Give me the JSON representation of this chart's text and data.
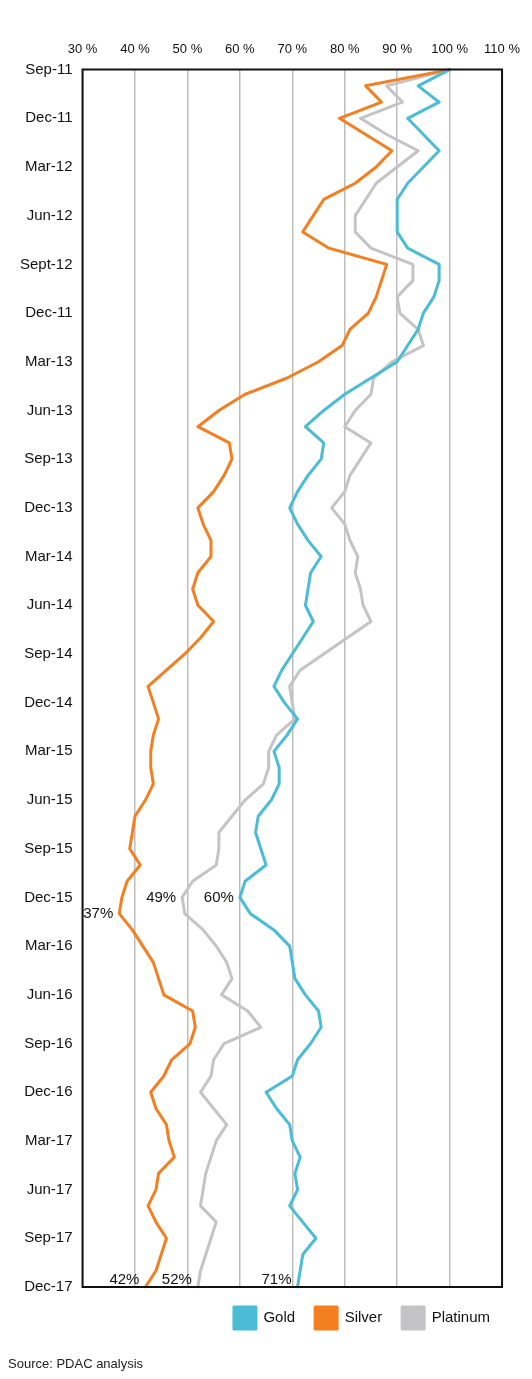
{
  "chart_data": {
    "type": "line",
    "categories": [
      "Sep-11",
      null,
      null,
      "Dec-11",
      null,
      null,
      "Mar-12",
      null,
      null,
      "Jun-12",
      null,
      null,
      "Sept-12",
      null,
      null,
      "Dec-11",
      null,
      null,
      "Mar-13",
      null,
      null,
      "Jun-13",
      null,
      null,
      "Sep-13",
      null,
      null,
      "Dec-13",
      null,
      null,
      "Mar-14",
      null,
      null,
      "Jun-14",
      null,
      null,
      "Sep-14",
      null,
      null,
      "Dec-14",
      null,
      null,
      "Mar-15",
      null,
      null,
      "Jun-15",
      null,
      null,
      "Sep-15",
      null,
      null,
      "Dec-15",
      null,
      null,
      "Mar-16",
      null,
      null,
      "Jun-16",
      null,
      null,
      "Sep-16",
      null,
      null,
      "Dec-16",
      null,
      null,
      "Mar-17",
      null,
      null,
      "Jun-17",
      null,
      null,
      "Sep-17",
      null,
      null,
      "Dec-17"
    ],
    "series": [
      {
        "name": "Gold",
        "color": "#4bbcd6",
        "values": [
          100,
          94,
          98,
          92,
          95,
          98,
          95,
          92,
          90,
          90,
          90,
          92,
          98,
          98,
          97,
          95,
          94,
          92,
          90,
          85,
          80,
          76,
          72.5,
          76,
          75.5,
          73,
          71,
          69.5,
          71,
          73,
          75.5,
          73.5,
          73,
          72.5,
          74,
          72,
          70,
          68,
          66.5,
          68.5,
          71,
          69,
          66.5,
          67.5,
          67.5,
          66,
          63.5,
          63,
          64,
          65,
          61,
          60,
          62,
          66.5,
          69.5,
          70,
          70.5,
          72.5,
          75,
          75.5,
          73.5,
          71,
          70,
          65,
          67,
          69.5,
          70,
          71.5,
          70.5,
          71,
          69.5,
          72,
          74.5,
          72,
          71.5,
          71
        ],
        "value_labels": [
          null,
          null,
          null,
          null,
          null,
          null,
          null,
          null,
          null,
          null,
          null,
          null,
          null,
          null,
          null,
          null,
          null,
          null,
          null,
          null,
          null,
          null,
          null,
          null,
          null,
          null,
          null,
          null,
          null,
          null,
          null,
          null,
          null,
          null,
          null,
          null,
          null,
          null,
          null,
          null,
          null,
          null,
          null,
          null,
          null,
          null,
          null,
          null,
          null,
          null,
          null,
          "60%",
          null,
          null,
          null,
          null,
          null,
          null,
          null,
          null,
          null,
          null,
          null,
          null,
          null,
          null,
          null,
          null,
          null,
          null,
          null,
          null,
          null,
          null,
          null,
          "71%"
        ]
      },
      {
        "name": "Silver",
        "color": "#f47f20",
        "values": [
          100,
          84,
          87,
          79,
          84,
          89,
          86,
          82,
          76,
          74,
          72,
          77,
          88,
          87,
          86,
          84.5,
          81,
          79.5,
          75,
          69,
          61,
          56,
          52,
          58,
          58.5,
          57,
          55,
          52,
          53,
          54.5,
          54.5,
          52,
          51,
          52,
          55,
          52.5,
          49.5,
          46,
          42.5,
          43.5,
          44.5,
          43.5,
          43,
          43,
          43.5,
          42,
          40,
          39.5,
          39,
          41,
          38.5,
          37.5,
          37,
          39.5,
          41.5,
          43.5,
          44.5,
          45.5,
          51,
          51.5,
          50.5,
          47,
          45.5,
          43,
          44,
          46,
          46.5,
          47.5,
          44.5,
          44,
          42.5,
          44,
          46,
          45,
          44,
          42
        ],
        "value_labels": [
          null,
          null,
          null,
          null,
          null,
          null,
          null,
          null,
          null,
          null,
          null,
          null,
          null,
          null,
          null,
          null,
          null,
          null,
          null,
          null,
          null,
          null,
          null,
          null,
          null,
          null,
          null,
          null,
          null,
          null,
          null,
          null,
          null,
          null,
          null,
          null,
          null,
          null,
          null,
          null,
          null,
          null,
          null,
          null,
          null,
          null,
          null,
          null,
          null,
          null,
          null,
          null,
          "37%",
          null,
          null,
          null,
          null,
          null,
          null,
          null,
          null,
          null,
          null,
          null,
          null,
          null,
          null,
          null,
          null,
          null,
          null,
          null,
          null,
          null,
          null,
          "42%"
        ]
      },
      {
        "name": "Platinum",
        "color": "#c4c4c6",
        "values": [
          100,
          88,
          91,
          83,
          88,
          94,
          90,
          86,
          84,
          82,
          82,
          85,
          93,
          93,
          90,
          90.5,
          94,
          95,
          89,
          85.5,
          85,
          82,
          80,
          85,
          83,
          81,
          80,
          77.5,
          80,
          81,
          82.5,
          82,
          83,
          83.5,
          85,
          80.5,
          76,
          71.5,
          69.5,
          70,
          70.5,
          67,
          65.5,
          65.5,
          64.5,
          61,
          58.5,
          56,
          56,
          55.5,
          51,
          49,
          49.5,
          53,
          55.5,
          57.5,
          58.5,
          56.5,
          61.5,
          64,
          57,
          55,
          54.5,
          52.5,
          55,
          57.5,
          55.5,
          54.5,
          53.5,
          53,
          52.5,
          55.5,
          54.5,
          53.5,
          52.5,
          52
        ],
        "value_labels": [
          null,
          null,
          null,
          null,
          null,
          null,
          null,
          null,
          null,
          null,
          null,
          null,
          null,
          null,
          null,
          null,
          null,
          null,
          null,
          null,
          null,
          null,
          null,
          null,
          null,
          null,
          null,
          null,
          null,
          null,
          null,
          null,
          null,
          null,
          null,
          null,
          null,
          null,
          null,
          null,
          null,
          null,
          null,
          null,
          null,
          null,
          null,
          null,
          null,
          null,
          null,
          "49%",
          null,
          null,
          null,
          null,
          null,
          null,
          null,
          null,
          null,
          null,
          null,
          null,
          null,
          null,
          null,
          null,
          null,
          null,
          null,
          null,
          null,
          null,
          null,
          "52%"
        ]
      }
    ],
    "orientation": "horizontal",
    "xlim": [
      30,
      110
    ],
    "xticks": [
      {
        "value": 30,
        "label": "30 %"
      },
      {
        "value": 40,
        "label": "40 %"
      },
      {
        "value": 50,
        "label": "50 %"
      },
      {
        "value": 60,
        "label": "60 %"
      },
      {
        "value": 70,
        "label": "70 %"
      },
      {
        "value": 80,
        "label": "80 %"
      },
      {
        "value": 90,
        "label": "90 %"
      },
      {
        "value": 100,
        "label": "100 %"
      },
      {
        "value": 110,
        "label": "110 %"
      }
    ],
    "grid": "x",
    "legend": "bottom right",
    "annotations": [
      "Source: PDAC analysis"
    ]
  }
}
